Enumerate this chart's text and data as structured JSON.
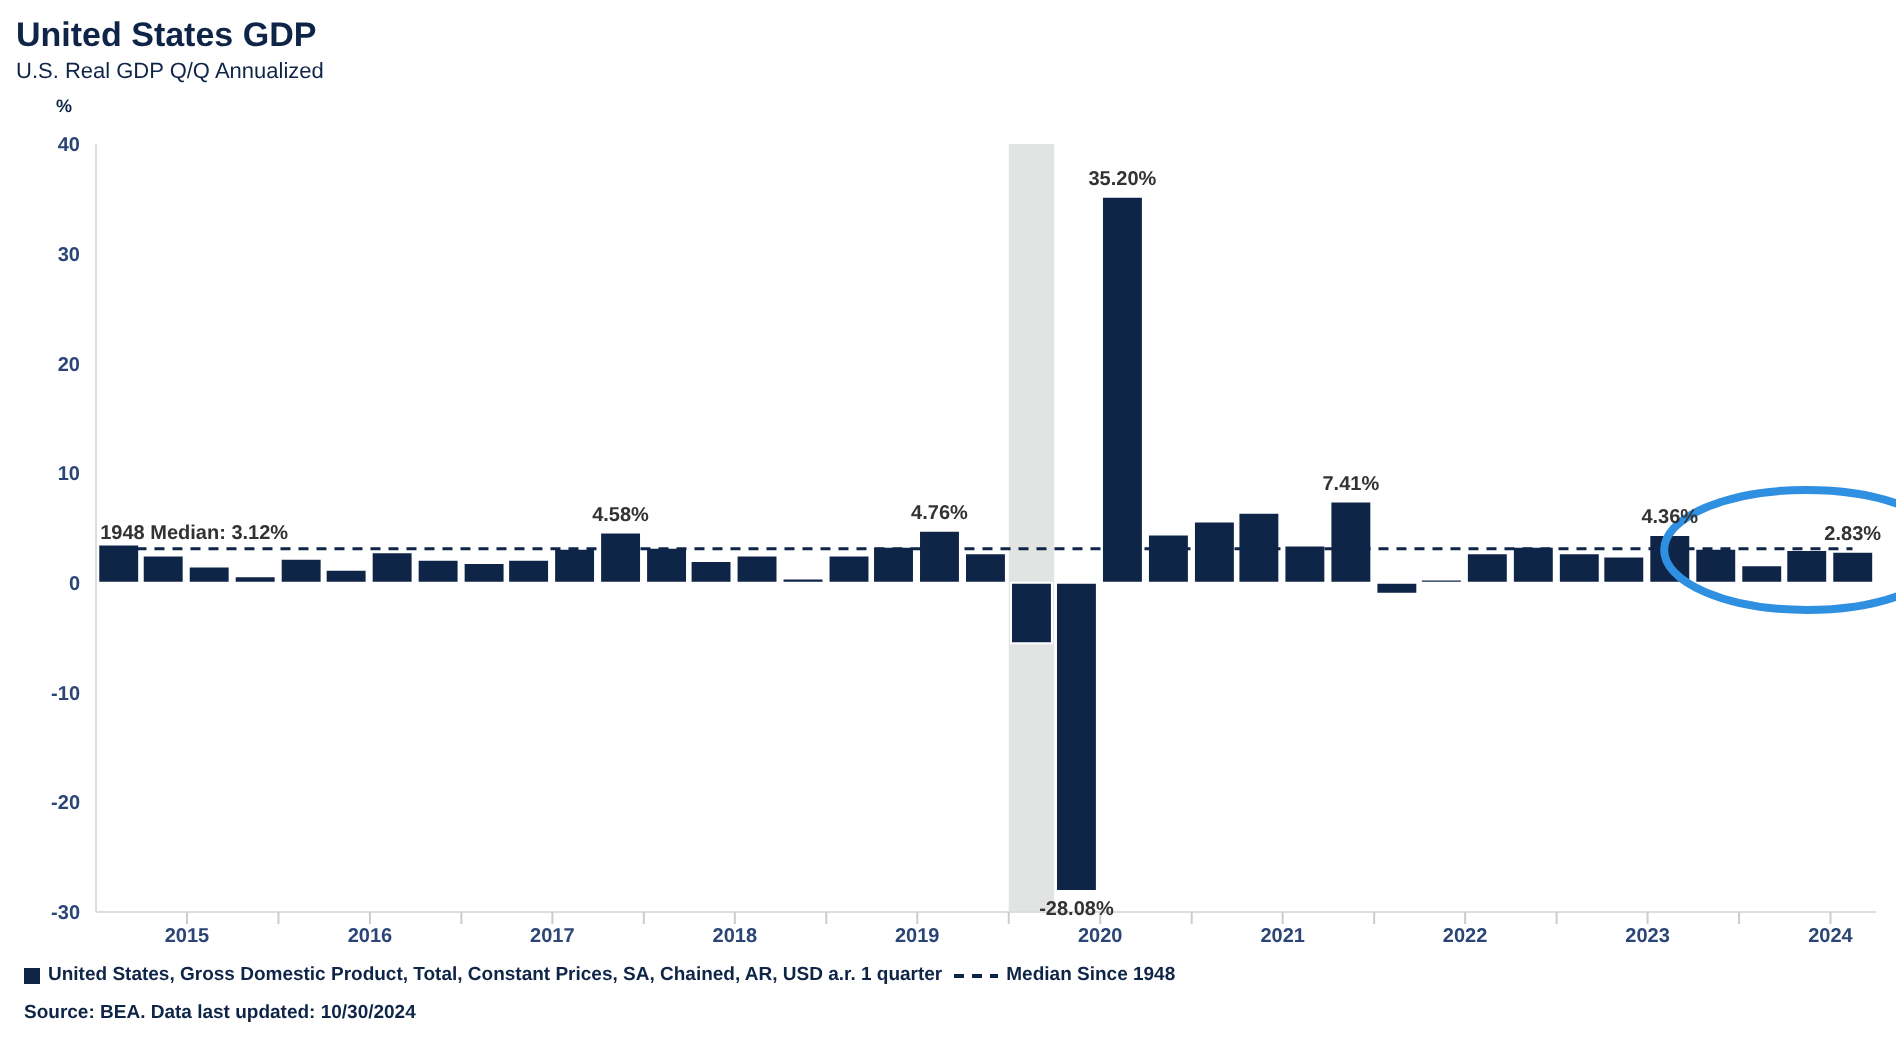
{
  "chart_data": {
    "type": "bar",
    "title": "United States GDP",
    "subtitle": "U.S. Real GDP Q/Q Annualized",
    "ylabel": "%",
    "x": [
      "2015-02-15",
      "2015-05-15",
      "2015-08-15",
      "2015-11-15",
      "2016-02-15",
      "2016-05-15",
      "2016-08-15",
      "2016-11-15",
      "2017-02-15",
      "2017-05-15",
      "2017-08-15",
      "2017-11-15",
      "2018-02-15",
      "2018-05-15",
      "2018-08-15",
      "2018-11-15",
      "2019-02-15",
      "2019-05-15",
      "2019-08-15",
      "2019-11-15",
      "2020-02-15",
      "2020-05-15",
      "2020-08-15",
      "2020-11-15",
      "2021-02-15",
      "2021-05-15",
      "2021-08-15",
      "2021-11-15",
      "2022-02-15",
      "2022-05-15",
      "2022-08-15",
      "2022-11-15",
      "2023-02-15",
      "2023-05-15",
      "2023-08-15",
      "2023-11-15",
      "2024-02-15",
      "2024-05-15",
      "2024-08-15"
    ],
    "series": [
      {
        "name": "United States, Gross Domestic Product, Total, Constant Prices, SA, Chained, AR, USD a.r. 1 quarter",
        "color": "#0f2548",
        "values": [
          3.5,
          2.5,
          1.5,
          0.6,
          2.2,
          1.2,
          2.8,
          2.1,
          1.8,
          2.1,
          3.1,
          4.58,
          3.2,
          2.0,
          2.5,
          0.4,
          2.5,
          3.3,
          4.76,
          2.7,
          -5.5,
          -28.08,
          35.2,
          4.4,
          5.6,
          6.4,
          3.4,
          7.41,
          -1.0,
          0.3,
          2.7,
          3.3,
          2.7,
          2.4,
          4.36,
          3.1,
          1.6,
          3.0,
          2.83
        ],
        "value_labels": [
          null,
          null,
          null,
          null,
          null,
          null,
          null,
          null,
          null,
          null,
          null,
          "4.58%",
          null,
          null,
          null,
          null,
          null,
          null,
          "4.76%",
          null,
          null,
          "-28.08%",
          "35.20%",
          null,
          null,
          null,
          null,
          "7.41%",
          null,
          null,
          null,
          null,
          null,
          null,
          "4.36%",
          null,
          null,
          null,
          "2.83%"
        ]
      },
      {
        "name": "Median Since 1948",
        "type": "line",
        "color": "#0f2548",
        "line_style": "dashed",
        "values": [
          3.12,
          3.12,
          3.12,
          3.12,
          3.12,
          3.12,
          3.12,
          3.12,
          3.12,
          3.12,
          3.12,
          3.12,
          3.12,
          3.12,
          3.12,
          3.12,
          3.12,
          3.12,
          3.12,
          3.12,
          3.12,
          3.12,
          3.12,
          3.12,
          3.12,
          3.12,
          3.12,
          3.12,
          3.12,
          3.12,
          3.12,
          3.12,
          3.12,
          3.12,
          3.12,
          3.12,
          3.12,
          3.12,
          3.12
        ]
      }
    ],
    "xlim": [
      "2015-01-01",
      "2024-10-01"
    ],
    "xticks": [
      {
        "value": "2015-07-02",
        "label": "2015"
      },
      {
        "value": "2016-01-01",
        "label": null
      },
      {
        "value": "2016-07-02",
        "label": "2016"
      },
      {
        "value": "2017-01-01",
        "label": null
      },
      {
        "value": "2017-07-02",
        "label": "2017"
      },
      {
        "value": "2018-01-01",
        "label": null
      },
      {
        "value": "2018-07-02",
        "label": "2018"
      },
      {
        "value": "2019-01-01",
        "label": null
      },
      {
        "value": "2019-07-02",
        "label": "2019"
      },
      {
        "value": "2020-01-01",
        "label": null
      },
      {
        "value": "2020-07-02",
        "label": "2020"
      },
      {
        "value": "2021-01-01",
        "label": null
      },
      {
        "value": "2021-07-02",
        "label": "2021"
      },
      {
        "value": "2022-01-01",
        "label": null
      },
      {
        "value": "2022-07-02",
        "label": "2022"
      },
      {
        "value": "2023-01-01",
        "label": null
      },
      {
        "value": "2023-07-02",
        "label": "2023"
      },
      {
        "value": "2024-01-01",
        "label": null
      },
      {
        "value": "2024-07-02",
        "label": "2024"
      }
    ],
    "ylim": [
      -30,
      40
    ],
    "yticks": [
      -30,
      -20,
      -10,
      0,
      10,
      20,
      30,
      40
    ],
    "bands": [
      {
        "axis": "x",
        "from": "2020-01-01",
        "to": "2020-04-01",
        "color": "#e2e3e3"
      }
    ],
    "annotations": [
      {
        "text": "1948 Median: 3.12%",
        "x": "2015-02-15",
        "y": 3.12
      },
      "Source: BEA. Data last updated: 10/30/2024"
    ],
    "marker": "none",
    "grid": false,
    "legend": "bottom"
  }
}
